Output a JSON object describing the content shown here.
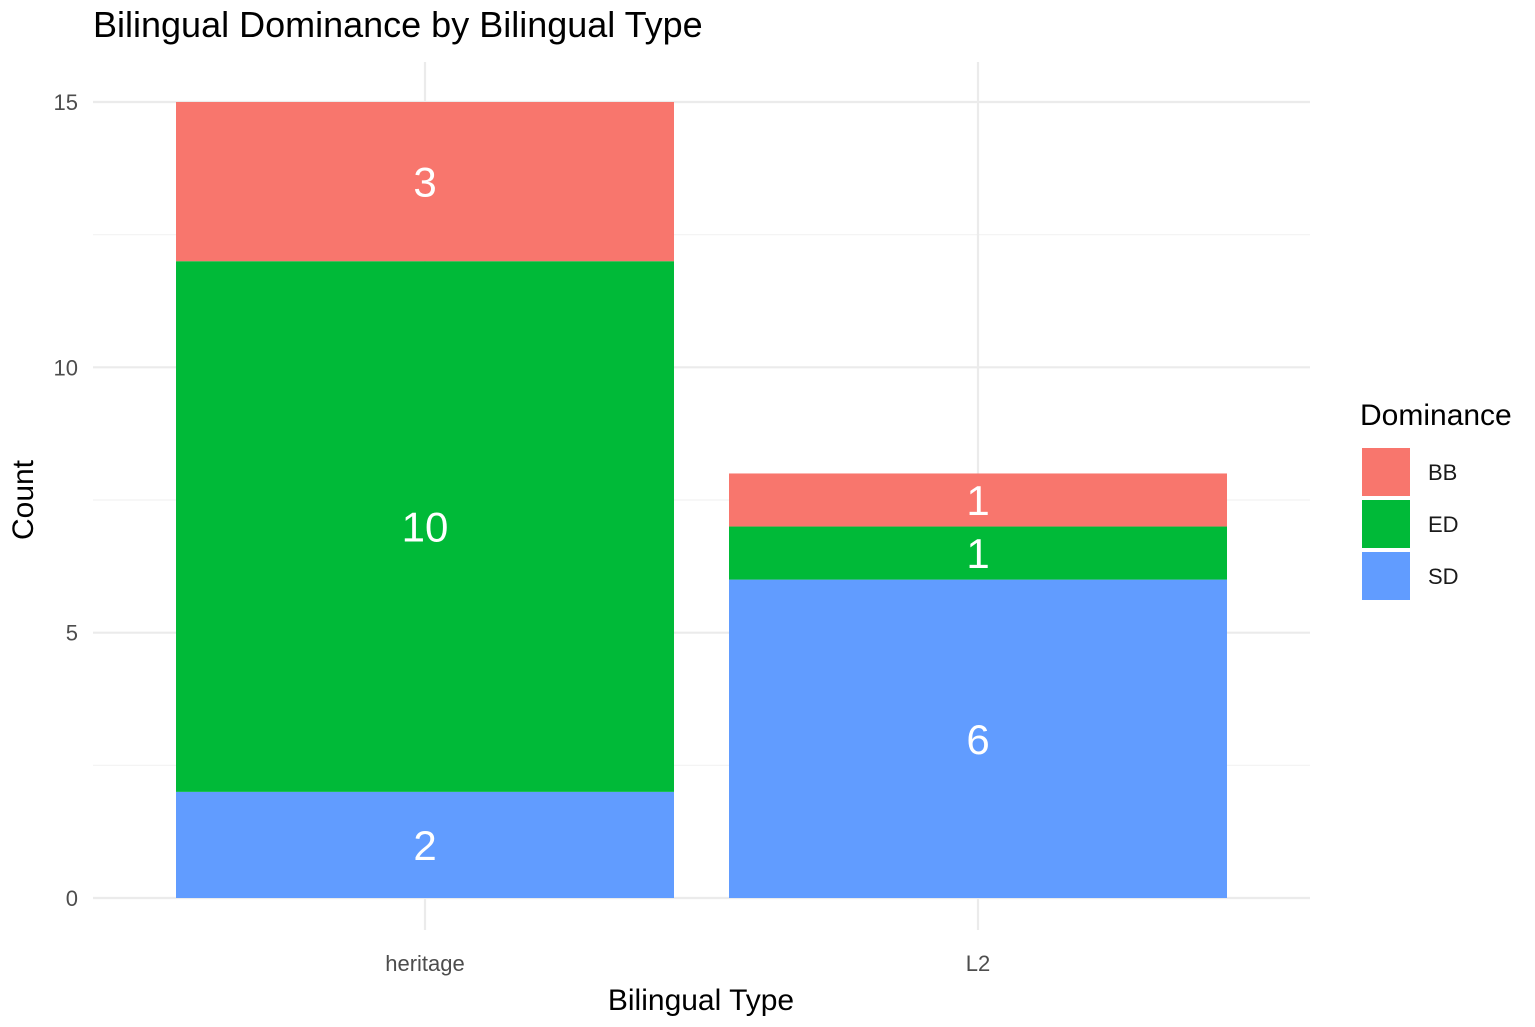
{
  "chart_data": {
    "type": "bar",
    "stacked": true,
    "title": "Bilingual Dominance by Bilingual Type",
    "xlabel": "Bilingual Type",
    "ylabel": "Count",
    "categories": [
      "heritage",
      "L2"
    ],
    "series": [
      {
        "name": "BB",
        "color": "#F8766D",
        "values": [
          3,
          1
        ]
      },
      {
        "name": "ED",
        "color": "#00BA38",
        "values": [
          10,
          1
        ]
      },
      {
        "name": "SD",
        "color": "#619CFF",
        "values": [
          2,
          6
        ]
      }
    ],
    "stack_order_bottom_to_top": [
      "SD",
      "ED",
      "BB"
    ],
    "ylim": [
      0,
      15
    ],
    "yticks": [
      0,
      5,
      10,
      15
    ],
    "grid": true,
    "legend": {
      "title": "Dominance",
      "position": "right"
    }
  }
}
